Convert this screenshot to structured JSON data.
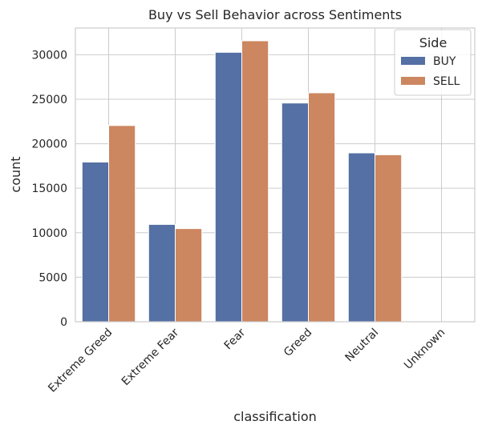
{
  "chart_data": {
    "type": "bar",
    "title": "Buy vs Sell Behavior across Sentiments",
    "xlabel": "classification",
    "ylabel": "count",
    "categories": [
      "Extreme Greed",
      "Extreme Fear",
      "Fear",
      "Greed",
      "Neutral",
      "Unknown"
    ],
    "series": [
      {
        "name": "BUY",
        "color": "#5470a4",
        "values": [
          17940,
          10935,
          30270,
          24575,
          18970,
          0
        ]
      },
      {
        "name": "SELL",
        "color": "#cc8660",
        "values": [
          22045,
          10465,
          31565,
          25720,
          18760,
          0
        ]
      }
    ],
    "ylim": [
      0,
      33000
    ],
    "yticks": [
      0,
      5000,
      10000,
      15000,
      20000,
      25000,
      30000
    ],
    "grid": true,
    "legend": {
      "title": "Side",
      "position": "top-right"
    }
  }
}
